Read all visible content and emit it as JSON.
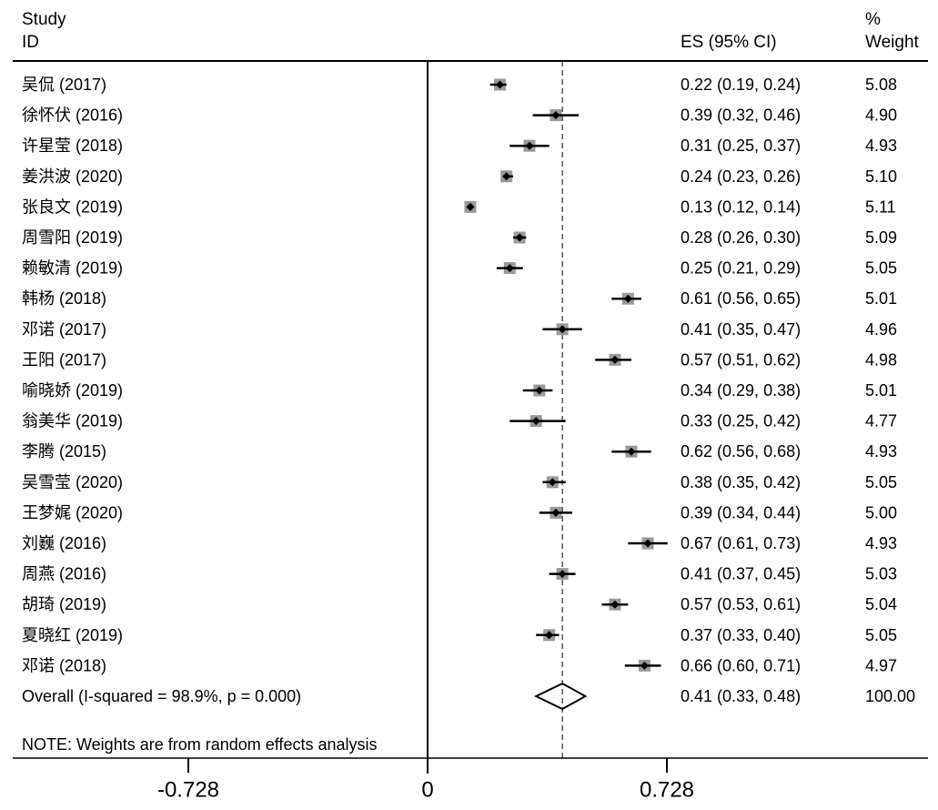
{
  "header": {
    "study_line1": "Study",
    "study_line2": "ID",
    "es_label": "ES (95% CI)",
    "weight_line1": "%",
    "weight_line2": "Weight"
  },
  "note": "NOTE: Weights are from random effects analysis",
  "chart_data": {
    "type": "forest",
    "x_axis": {
      "ticks": [
        -0.728,
        0,
        0.728
      ],
      "tick_labels": [
        "-0.728",
        "0",
        "0.728"
      ],
      "range": [
        -0.728,
        0.728
      ]
    },
    "null_line": 0,
    "overall_line": 0.41,
    "studies": [
      {
        "id": "吴侃 (2017)",
        "es": 0.22,
        "lo": 0.19,
        "hi": 0.24,
        "es_text": "0.22 (0.19, 0.24)",
        "weight": "5.08"
      },
      {
        "id": "徐怀伏 (2016)",
        "es": 0.39,
        "lo": 0.32,
        "hi": 0.46,
        "es_text": "0.39 (0.32, 0.46)",
        "weight": "4.90"
      },
      {
        "id": "许星莹 (2018)",
        "es": 0.31,
        "lo": 0.25,
        "hi": 0.37,
        "es_text": "0.31 (0.25, 0.37)",
        "weight": "4.93"
      },
      {
        "id": "姜洪波 (2020)",
        "es": 0.24,
        "lo": 0.23,
        "hi": 0.26,
        "es_text": "0.24 (0.23, 0.26)",
        "weight": "5.10"
      },
      {
        "id": "张良文 (2019)",
        "es": 0.13,
        "lo": 0.12,
        "hi": 0.14,
        "es_text": "0.13 (0.12, 0.14)",
        "weight": "5.11"
      },
      {
        "id": "周雪阳 (2019)",
        "es": 0.28,
        "lo": 0.26,
        "hi": 0.3,
        "es_text": "0.28 (0.26, 0.30)",
        "weight": "5.09"
      },
      {
        "id": "赖敏清 (2019)",
        "es": 0.25,
        "lo": 0.21,
        "hi": 0.29,
        "es_text": "0.25 (0.21, 0.29)",
        "weight": "5.05"
      },
      {
        "id": "韩杨 (2018)",
        "es": 0.61,
        "lo": 0.56,
        "hi": 0.65,
        "es_text": "0.61 (0.56, 0.65)",
        "weight": "5.01"
      },
      {
        "id": "邓诺 (2017)",
        "es": 0.41,
        "lo": 0.35,
        "hi": 0.47,
        "es_text": "0.41 (0.35, 0.47)",
        "weight": "4.96"
      },
      {
        "id": "王阳 (2017)",
        "es": 0.57,
        "lo": 0.51,
        "hi": 0.62,
        "es_text": "0.57 (0.51, 0.62)",
        "weight": "4.98"
      },
      {
        "id": "喻晓娇 (2019)",
        "es": 0.34,
        "lo": 0.29,
        "hi": 0.38,
        "es_text": "0.34 (0.29, 0.38)",
        "weight": "5.01"
      },
      {
        "id": "翁美华 (2019)",
        "es": 0.33,
        "lo": 0.25,
        "hi": 0.42,
        "es_text": "0.33 (0.25, 0.42)",
        "weight": "4.77"
      },
      {
        "id": "李腾 (2015)",
        "es": 0.62,
        "lo": 0.56,
        "hi": 0.68,
        "es_text": "0.62 (0.56, 0.68)",
        "weight": "4.93"
      },
      {
        "id": "吴雪莹 (2020)",
        "es": 0.38,
        "lo": 0.35,
        "hi": 0.42,
        "es_text": "0.38 (0.35, 0.42)",
        "weight": "5.05"
      },
      {
        "id": "王梦娓 (2020)",
        "es": 0.39,
        "lo": 0.34,
        "hi": 0.44,
        "es_text": "0.39 (0.34, 0.44)",
        "weight": "5.00"
      },
      {
        "id": "刘巍 (2016)",
        "es": 0.67,
        "lo": 0.61,
        "hi": 0.73,
        "es_text": "0.67 (0.61, 0.73)",
        "weight": "4.93"
      },
      {
        "id": "周燕 (2016)",
        "es": 0.41,
        "lo": 0.37,
        "hi": 0.45,
        "es_text": "0.41 (0.37, 0.45)",
        "weight": "5.03"
      },
      {
        "id": "胡琦 (2019)",
        "es": 0.57,
        "lo": 0.53,
        "hi": 0.61,
        "es_text": "0.57 (0.53, 0.61)",
        "weight": "5.04"
      },
      {
        "id": "夏晓红 (2019)",
        "es": 0.37,
        "lo": 0.33,
        "hi": 0.4,
        "es_text": "0.37 (0.33, 0.40)",
        "weight": "5.05"
      },
      {
        "id": "邓诺 (2018)",
        "es": 0.66,
        "lo": 0.6,
        "hi": 0.71,
        "es_text": "0.66 (0.60, 0.71)",
        "weight": "4.97"
      }
    ],
    "overall": {
      "label": "Overall  (I-squared = 98.9%, p = 0.000)",
      "es": 0.41,
      "lo": 0.33,
      "hi": 0.48,
      "es_text": "0.41 (0.33, 0.48)",
      "weight": "100.00"
    }
  }
}
